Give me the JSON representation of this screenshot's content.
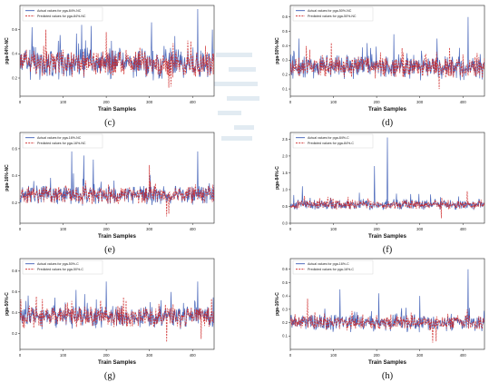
{
  "chart_data": [
    {
      "type": "line",
      "panel_label": "(c)",
      "xlabel": "Train Samples",
      "ylabel": "pga-84%-NC",
      "xlim": [
        0,
        450
      ],
      "ylim": [
        0.05,
        0.8
      ],
      "xticks": [
        0,
        100,
        200,
        300,
        400
      ],
      "yticks": [
        0.2,
        0.4,
        0.6
      ],
      "legend_position": "top-left",
      "series": [
        {
          "name": "Actual values for pga-84%-NC",
          "color": "#3b5bb5",
          "style": "solid",
          "base": 0.32,
          "amp": 0.12,
          "spikes": [
            [
              28,
              0.62
            ],
            [
              143,
              0.64
            ],
            [
              165,
              0.63
            ],
            [
              305,
              0.66
            ],
            [
              412,
              0.77
            ],
            [
              446,
              0.6
            ]
          ],
          "dips": []
        },
        {
          "name": "Predicted values for pga-84%-NC",
          "color": "#cc2222",
          "style": "dashed",
          "base": 0.32,
          "amp": 0.1,
          "spikes": [
            [
              60,
              0.6
            ],
            [
              200,
              0.58
            ]
          ],
          "dips": [
            [
              345,
              0.12
            ],
            [
              350,
              0.13
            ]
          ]
        }
      ]
    },
    {
      "type": "line",
      "panel_label": "(d)",
      "xlabel": "Train Samples",
      "ylabel": "pga-50%-NC",
      "xlim": [
        0,
        450
      ],
      "ylim": [
        0.05,
        0.68
      ],
      "xticks": [
        0,
        100,
        200,
        300,
        400
      ],
      "yticks": [
        0.1,
        0.2,
        0.3,
        0.4,
        0.5,
        0.6
      ],
      "legend_position": "top-left",
      "series": [
        {
          "name": "Actual values for pga-50%-NC",
          "color": "#3b5bb5",
          "style": "solid",
          "base": 0.25,
          "amp": 0.08,
          "spikes": [
            [
              20,
              0.45
            ],
            [
              240,
              0.48
            ],
            [
              340,
              0.45
            ],
            [
              412,
              0.6
            ]
          ],
          "dips": []
        },
        {
          "name": "Predicted values for pga-50%-NC",
          "color": "#cc2222",
          "style": "dashed",
          "base": 0.25,
          "amp": 0.07,
          "spikes": [
            [
              95,
              0.42
            ]
          ],
          "dips": [
            [
              345,
              0.1
            ]
          ]
        }
      ]
    },
    {
      "type": "line",
      "panel_label": "(e)",
      "xlabel": "Train Samples",
      "ylabel": "pga-16%-NC",
      "xlim": [
        0,
        450
      ],
      "ylim": [
        0.05,
        0.72
      ],
      "xticks": [
        0,
        100,
        200,
        300,
        400
      ],
      "yticks": [
        0.2,
        0.4,
        0.6
      ],
      "legend_position": "top-left",
      "series": [
        {
          "name": "Actual values for pga-16%-NC",
          "color": "#3b5bb5",
          "style": "solid",
          "base": 0.26,
          "amp": 0.07,
          "spikes": [
            [
              120,
              0.58
            ],
            [
              148,
              0.55
            ],
            [
              170,
              0.52
            ],
            [
              412,
              0.58
            ]
          ],
          "dips": []
        },
        {
          "name": "Predicted values for pga-16%-NC",
          "color": "#cc2222",
          "style": "dashed",
          "base": 0.26,
          "amp": 0.06,
          "spikes": [
            [
              300,
              0.48
            ]
          ],
          "dips": [
            [
              340,
              0.1
            ],
            [
              345,
              0.12
            ]
          ]
        }
      ]
    },
    {
      "type": "line",
      "panel_label": "(f)",
      "xlabel": "Train Samples",
      "ylabel": "pga-84%-C",
      "xlim": [
        0,
        450
      ],
      "ylim": [
        0.0,
        2.7
      ],
      "xticks": [
        0,
        100,
        200,
        300,
        400
      ],
      "yticks": [
        0.0,
        0.5,
        1.0,
        1.5,
        2.0,
        2.5
      ],
      "legend_position": "top-left",
      "series": [
        {
          "name": "Actual values for pga-84%-C",
          "color": "#3b5bb5",
          "style": "solid",
          "base": 0.55,
          "amp": 0.15,
          "spikes": [
            [
              28,
              1.1
            ],
            [
              195,
              1.7
            ],
            [
              225,
              2.55
            ]
          ],
          "dips": []
        },
        {
          "name": "Predicted values for pga-84%-C",
          "color": "#cc2222",
          "style": "dashed",
          "base": 0.55,
          "amp": 0.12,
          "spikes": [
            [
              410,
              0.95
            ]
          ],
          "dips": [
            [
              350,
              0.15
            ]
          ]
        }
      ]
    },
    {
      "type": "line",
      "panel_label": "(g)",
      "xlabel": "Train Samples",
      "ylabel": "pga-50%-C",
      "xlim": [
        0,
        450
      ],
      "ylim": [
        0.05,
        0.92
      ],
      "xticks": [
        0,
        100,
        200,
        300,
        400
      ],
      "yticks": [
        0.2,
        0.4,
        0.6,
        0.8
      ],
      "legend_position": "top-left",
      "series": [
        {
          "name": "Actual values for pga-50%-C",
          "color": "#3b5bb5",
          "style": "solid",
          "base": 0.36,
          "amp": 0.1,
          "spikes": [
            [
              130,
              0.62
            ],
            [
              150,
              0.58
            ],
            [
              200,
              0.7
            ],
            [
              412,
              0.7
            ],
            [
              350,
              0.6
            ]
          ],
          "dips": []
        },
        {
          "name": "Predicted values for pga-50%-C",
          "color": "#cc2222",
          "style": "dashed",
          "base": 0.36,
          "amp": 0.09,
          "spikes": [
            [
              240,
              0.55
            ]
          ],
          "dips": [
            [
              340,
              0.12
            ],
            [
              420,
              0.15
            ]
          ]
        }
      ]
    },
    {
      "type": "line",
      "panel_label": "(h)",
      "xlabel": "Train Samples",
      "ylabel": "pga-16%-C",
      "xlim": [
        0,
        450
      ],
      "ylim": [
        0.0,
        0.68
      ],
      "xticks": [
        0,
        100,
        200,
        300,
        400
      ],
      "yticks": [
        0.1,
        0.2,
        0.3,
        0.4,
        0.5,
        0.6
      ],
      "legend_position": "top-left",
      "series": [
        {
          "name": "Actual values for pga-16%-C",
          "color": "#3b5bb5",
          "style": "solid",
          "base": 0.2,
          "amp": 0.06,
          "spikes": [
            [
              115,
              0.45
            ],
            [
              205,
              0.42
            ],
            [
              300,
              0.4
            ],
            [
              412,
              0.6
            ]
          ],
          "dips": []
        },
        {
          "name": "Predicted values for pga-16%-C",
          "color": "#cc2222",
          "style": "dashed",
          "base": 0.2,
          "amp": 0.05,
          "spikes": [
            [
              40,
              0.38
            ]
          ],
          "dips": [
            [
              330,
              0.05
            ],
            [
              338,
              0.06
            ]
          ]
        }
      ]
    }
  ]
}
